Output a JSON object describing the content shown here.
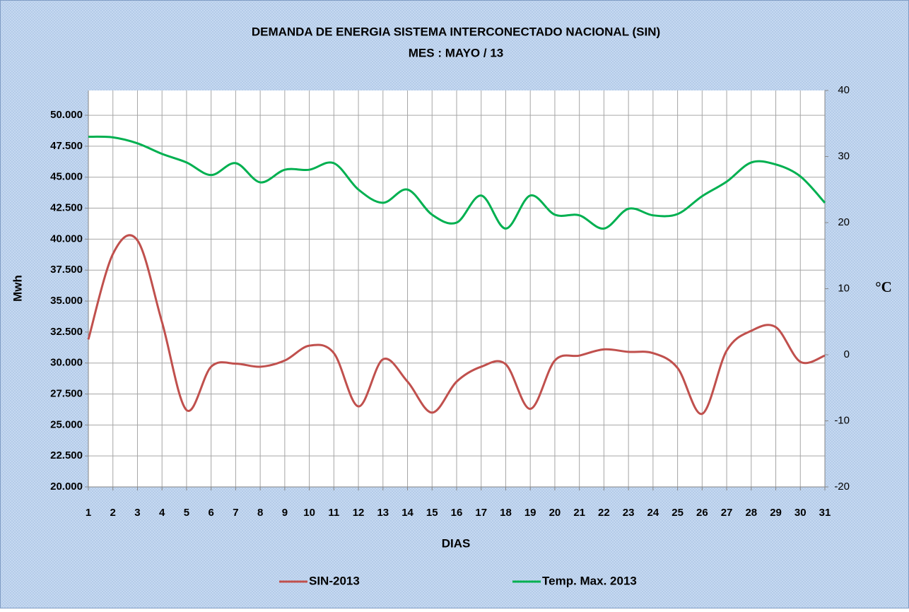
{
  "chart_data": {
    "type": "line",
    "title": "DEMANDA DE ENERGIA SISTEMA INTERCONECTADO NACIONAL (SIN)",
    "subtitle": "MES :  MAYO / 13",
    "x_label": "DIAS",
    "y_label": "Mwh",
    "y2_label": "°C",
    "x": [
      1,
      2,
      3,
      4,
      5,
      6,
      7,
      8,
      9,
      10,
      11,
      12,
      13,
      14,
      15,
      16,
      17,
      18,
      19,
      20,
      21,
      22,
      23,
      24,
      25,
      26,
      27,
      28,
      29,
      30,
      31
    ],
    "xlim": [
      1,
      31
    ],
    "xticks": [
      1,
      2,
      3,
      4,
      5,
      6,
      7,
      8,
      9,
      10,
      11,
      12,
      13,
      14,
      15,
      16,
      17,
      18,
      19,
      20,
      21,
      22,
      23,
      24,
      25,
      26,
      27,
      28,
      29,
      30,
      31
    ],
    "ylim": [
      20000,
      52000
    ],
    "yticks": [
      {
        "value": 20000,
        "label": "20.000"
      },
      {
        "value": 22500,
        "label": "22.500"
      },
      {
        "value": 25000,
        "label": "25.000"
      },
      {
        "value": 27500,
        "label": "27.500"
      },
      {
        "value": 30000,
        "label": "30.000"
      },
      {
        "value": 32500,
        "label": "32.500"
      },
      {
        "value": 35000,
        "label": "35.000"
      },
      {
        "value": 37500,
        "label": "37.500"
      },
      {
        "value": 40000,
        "label": "40.000"
      },
      {
        "value": 42500,
        "label": "42.500"
      },
      {
        "value": 45000,
        "label": "45.000"
      },
      {
        "value": 47500,
        "label": "47.500"
      },
      {
        "value": 50000,
        "label": "50.000"
      }
    ],
    "y2lim": [
      -20,
      40
    ],
    "y2ticks": [
      -20,
      -10,
      0,
      10,
      20,
      30,
      40
    ],
    "grid": true,
    "legend": "bottom",
    "series": [
      {
        "name": "SIN-2013",
        "color": "#c0504d",
        "values": [
          31900,
          38800,
          39900,
          33300,
          26200,
          29700,
          29950,
          29700,
          30200,
          31400,
          30800,
          26500,
          30300,
          28500,
          26000,
          28500,
          29700,
          29900,
          26300,
          30200,
          30600,
          31100,
          30900,
          30800,
          29600,
          25900,
          31000,
          32600,
          32900,
          30100,
          30600
        ]
      },
      {
        "name": "Temp. Max. 2013",
        "color": "#00b050",
        "axis": "y2",
        "values": [
          33.0,
          32.9,
          32.0,
          30.4,
          29.1,
          27.2,
          29.0,
          26.1,
          28.0,
          28.0,
          29.0,
          25.0,
          23.0,
          25.0,
          21.2,
          20.0,
          24.1,
          19.1,
          24.1,
          21.2,
          21.1,
          19.1,
          22.1,
          21.1,
          21.3,
          24.0,
          26.2,
          29.1,
          28.8,
          27.0,
          23.0
        ]
      }
    ]
  }
}
